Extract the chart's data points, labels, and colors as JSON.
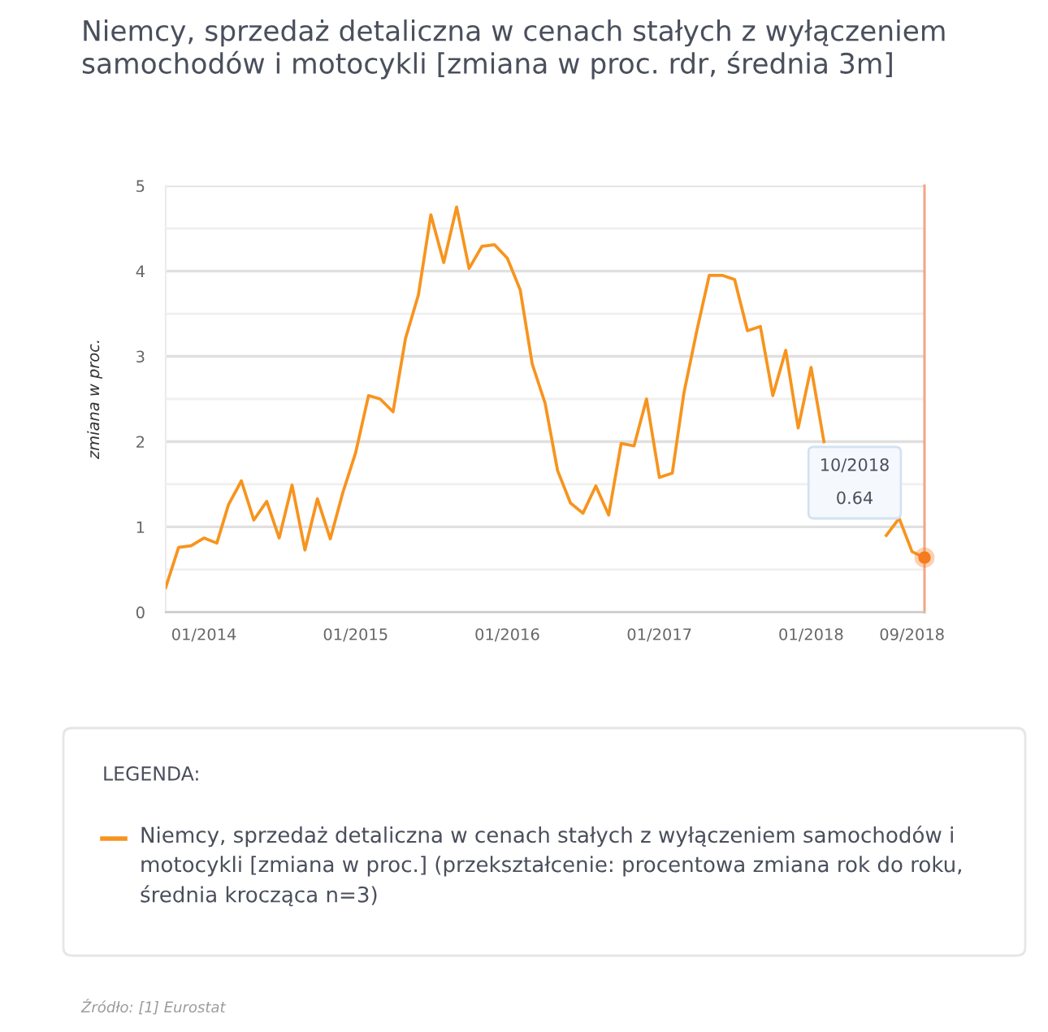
{
  "chart_data": {
    "type": "line",
    "title": "Niemcy, sprzedaż detaliczna w cenach stałych z wyłączeniem samochodów i motocykli [zmiana w proc. rdr, średnia 3m]",
    "ylabel": "zmiana w proc.",
    "legend_title": "LEGENDA:",
    "x": [
      "2013-10",
      "2013-11",
      "2013-12",
      "2014-01",
      "2014-02",
      "2014-03",
      "2014-04",
      "2014-05",
      "2014-06",
      "2014-07",
      "2014-08",
      "2014-09",
      "2014-10",
      "2014-11",
      "2014-12",
      "2015-01",
      "2015-02",
      "2015-03",
      "2015-04",
      "2015-05",
      "2015-06",
      "2015-07",
      "2015-08",
      "2015-09",
      "2015-10",
      "2015-11",
      "2015-12",
      "2016-01",
      "2016-02",
      "2016-03",
      "2016-04",
      "2016-05",
      "2016-06",
      "2016-07",
      "2016-08",
      "2016-09",
      "2016-10",
      "2016-11",
      "2016-12",
      "2017-01",
      "2017-02",
      "2017-03",
      "2017-04",
      "2017-05",
      "2017-06",
      "2017-07",
      "2017-08",
      "2017-09",
      "2017-10",
      "2017-11",
      "2017-12",
      "2018-01",
      "2018-02",
      "2018-03",
      "2018-04",
      "2018-05",
      "2018-06",
      "2018-07",
      "2018-08",
      "2018-09",
      "2018-10"
    ],
    "series": [
      {
        "name": "Niemcy, sprzedaż detaliczna w cenach stałych z wyłączeniem samochodów i motocykli [zmiana w proc.] (przekształcenie: procentowa zmiana rok do roku, średnia krocząca n=3)",
        "color": "#f7941e",
        "values": [
          0.29,
          0.76,
          0.78,
          0.87,
          0.81,
          1.26,
          1.54,
          1.08,
          1.3,
          0.87,
          1.49,
          0.73,
          1.33,
          0.86,
          1.4,
          1.87,
          2.54,
          2.5,
          2.35,
          3.21,
          3.72,
          4.66,
          4.1,
          4.75,
          4.03,
          4.29,
          4.31,
          4.15,
          3.78,
          2.91,
          2.45,
          1.66,
          1.28,
          1.16,
          1.48,
          1.14,
          1.98,
          1.95,
          2.5,
          1.58,
          1.63,
          2.57,
          3.3,
          3.95,
          3.95,
          3.9,
          3.3,
          3.35,
          2.54,
          3.07,
          2.16,
          2.87,
          2.0,
          null,
          null,
          null,
          null,
          0.9,
          1.1,
          0.71,
          0.64
        ]
      },
      {
        "type": "scatter",
        "x": [
          "2018-10"
        ],
        "values": [
          0.64
        ],
        "color": "#f57c1f",
        "marker": "circle"
      }
    ],
    "xlim": [
      "2013-10",
      "2018-10"
    ],
    "xticks": [
      {
        "value": "2014-01",
        "label": "01/2014"
      },
      {
        "value": "2015-01",
        "label": "01/2015"
      },
      {
        "value": "2016-01",
        "label": "01/2016"
      },
      {
        "value": "2017-01",
        "label": "01/2017"
      },
      {
        "value": "2018-01",
        "label": "01/2018"
      },
      {
        "value": "2018-09",
        "label": "09/2018"
      }
    ],
    "ylim": [
      0,
      5
    ],
    "yticks": [
      0,
      {
        "value": 0.5,
        "label": null
      },
      1,
      {
        "value": 1.5,
        "label": null
      },
      2,
      {
        "value": 2.5,
        "label": null
      },
      3,
      {
        "value": 3.5,
        "label": null
      },
      4,
      {
        "value": 4.5,
        "label": null
      },
      5
    ],
    "grid": "y",
    "legend": "bottom",
    "line_style": "solid",
    "ref_lines": [
      {
        "axis": "x",
        "value": "2018-10",
        "color": "#f4a585"
      }
    ],
    "annotations": [
      "10/2018\n0.64",
      "Źródło: [1] Eurostat"
    ]
  }
}
